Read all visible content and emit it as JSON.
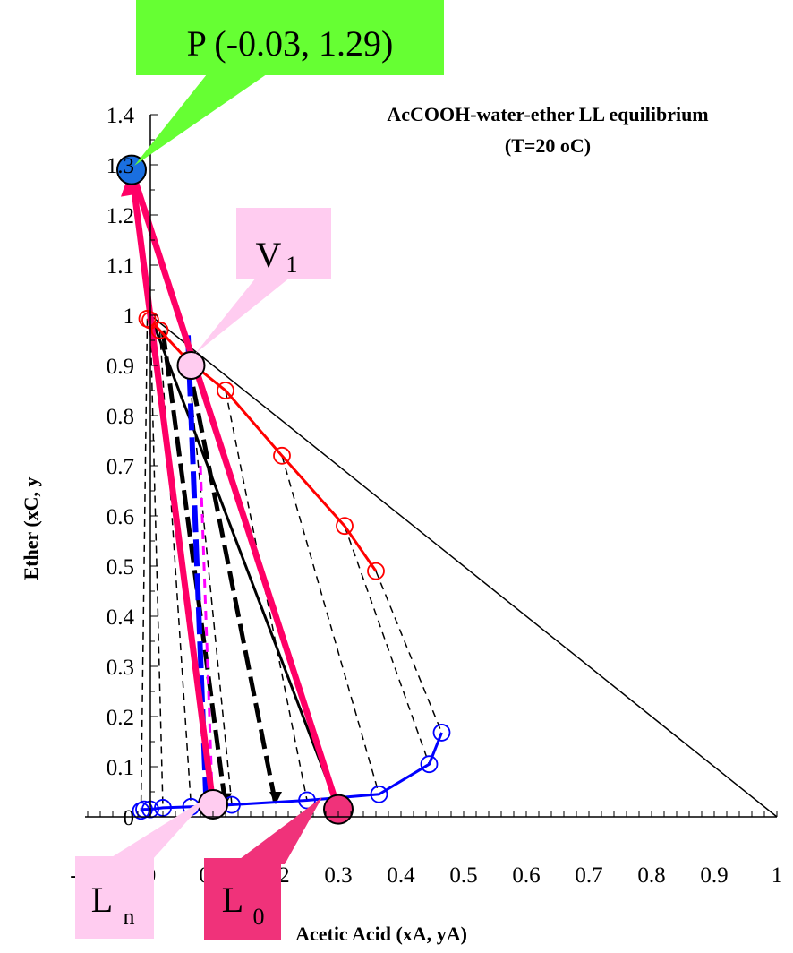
{
  "chart_data": {
    "type": "scatter",
    "title": "AcCOOH-water-ether LL equilibrium",
    "subtitle": "(T=20 oC)",
    "xlabel": "Acetic Acid (xA, yA)",
    "ylabel": "Ether (xC, y",
    "xlim": [
      -0.1,
      1.0
    ],
    "ylim": [
      0.0,
      1.4
    ],
    "x_ticks": [
      "-0.1",
      "0",
      "0.1",
      "0.2",
      "0.3",
      "0.4",
      "0.5",
      "0.6",
      "0.7",
      "0.8",
      "0.9",
      "1"
    ],
    "y_ticks": [
      "0",
      "0.1",
      "0.2",
      "0.3",
      "0.4",
      "0.5",
      "0.6",
      "0.7",
      "0.8",
      "0.9",
      "1",
      "1.1",
      "1.2",
      "1.3",
      "1.4"
    ],
    "colors": {
      "extract": "#ff0000",
      "raffinate": "#0000ff",
      "operating": "#ff0066",
      "point_P": "#1a6fe0",
      "point_L0": "#f0327a",
      "light_pink": "#ffccf0",
      "green": "#66ff33",
      "magenta": "#ff00ff"
    },
    "series": [
      {
        "role": "extract",
        "points": [
          [
            -0.005,
            0.993
          ],
          [
            0.0,
            0.99
          ],
          [
            0.015,
            0.97
          ],
          [
            0.06,
            0.91
          ],
          [
            0.12,
            0.85
          ],
          [
            0.21,
            0.72
          ],
          [
            0.31,
            0.58
          ],
          [
            0.36,
            0.49
          ]
        ]
      },
      {
        "role": "raffinate",
        "points": [
          [
            -0.015,
            0.012
          ],
          [
            -0.01,
            0.015
          ],
          [
            0.0,
            0.015
          ],
          [
            0.02,
            0.018
          ],
          [
            0.065,
            0.02
          ],
          [
            0.13,
            0.024
          ],
          [
            0.25,
            0.033
          ],
          [
            0.365,
            0.045
          ],
          [
            0.445,
            0.105
          ],
          [
            0.465,
            0.168
          ]
        ]
      }
    ],
    "tie_lines": [
      [
        [
          -0.005,
          0.993
        ],
        [
          -0.015,
          0.012
        ]
      ],
      [
        [
          0.0,
          0.99
        ],
        [
          0.02,
          0.018
        ]
      ],
      [
        [
          0.015,
          0.97
        ],
        [
          0.065,
          0.02
        ]
      ],
      [
        [
          0.06,
          0.91
        ],
        [
          0.13,
          0.024
        ]
      ],
      [
        [
          0.12,
          0.85
        ],
        [
          0.25,
          0.033
        ]
      ],
      [
        [
          0.21,
          0.72
        ],
        [
          0.365,
          0.045
        ]
      ],
      [
        [
          0.31,
          0.58
        ],
        [
          0.445,
          0.105
        ]
      ],
      [
        [
          0.36,
          0.49
        ],
        [
          0.465,
          0.168
        ]
      ]
    ],
    "diagonal": [
      [
        0.0,
        1.0
      ],
      [
        1.0,
        0.0
      ]
    ],
    "operating_lines": [
      [
        [
          0.1,
          0.025
        ],
        [
          -0.03,
          1.29
        ]
      ],
      [
        [
          0.3,
          0.015
        ],
        [
          -0.03,
          1.29
        ]
      ]
    ],
    "black_lines": [
      [
        [
          0.0,
          1.0
        ],
        [
          0.3,
          0.015
        ]
      ]
    ],
    "stage_steps_black_dashed": [
      [
        [
          0.06,
          0.91
        ],
        [
          0.2,
          0.025
        ]
      ],
      [
        [
          0.02,
          0.97
        ],
        [
          0.12,
          0.022
        ]
      ]
    ],
    "stage_steps_blue_dashed": [
      [
        [
          0.06,
          0.96
        ],
        [
          0.09,
          0.0
        ]
      ]
    ],
    "stage_steps_magenta_dashed": [
      [
        [
          0.08,
          0.7
        ],
        [
          0.1,
          0.0
        ]
      ]
    ],
    "points": [
      {
        "id": "P",
        "x": -0.03,
        "y": 1.29,
        "label": "P (-0.03, 1.29)"
      },
      {
        "id": "V1",
        "x": 0.065,
        "y": 0.9,
        "label": "V",
        "sub": "1"
      },
      {
        "id": "Ln",
        "x": 0.1,
        "y": 0.025,
        "label": "L",
        "sub": "n"
      },
      {
        "id": "L0",
        "x": 0.3,
        "y": 0.015,
        "label": "L",
        "sub": "0"
      }
    ]
  }
}
